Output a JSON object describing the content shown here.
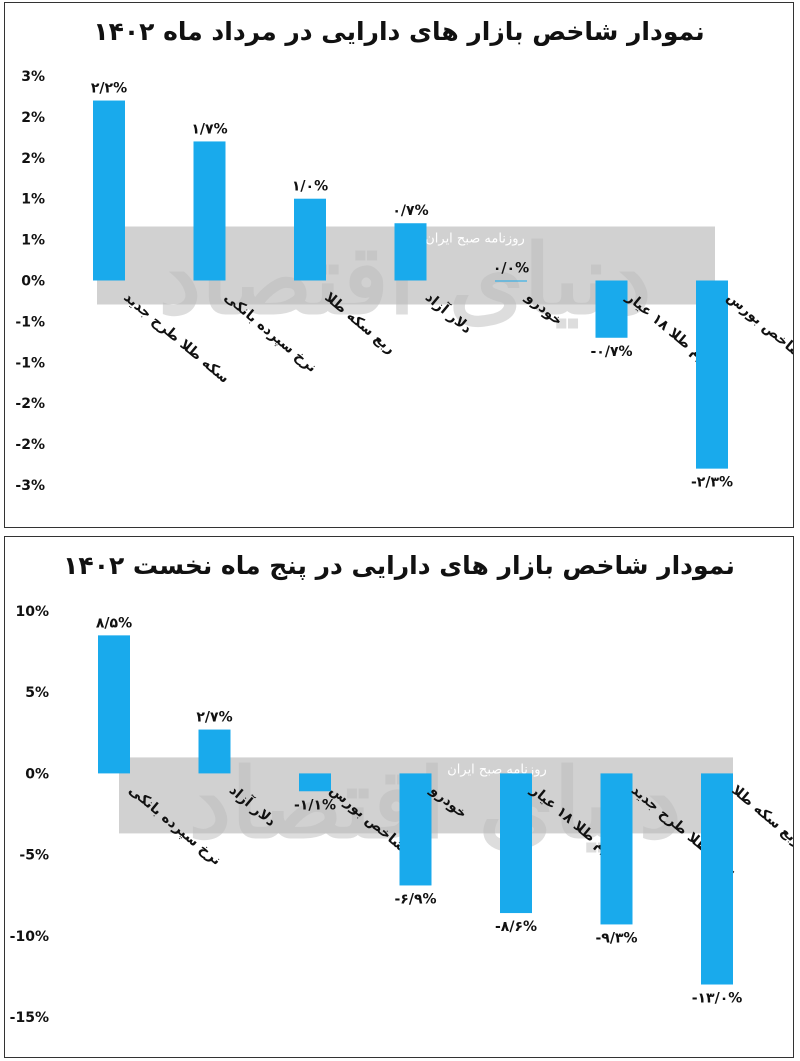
{
  "watermark": {
    "logo_text": "دنیای اقتصاد",
    "tagline": "روزنامه صبح ایران"
  },
  "colors": {
    "bar": "#19aaec",
    "band": "#9a9a9a"
  },
  "chart_data": [
    {
      "type": "bar",
      "title": "نمودار شاخص بازار های دارایی در مرداد ماه ۱۴۰۲",
      "categories": [
        "سکه طلا طرح جدید",
        "نرخ سپرده بانکی",
        "ربع سکه طلا",
        "دلار آزاد",
        "خودرو",
        "گرم طلا ۱۸ عیار",
        "شاخص بورس"
      ],
      "values": [
        2.2,
        1.7,
        1.0,
        0.7,
        0.0,
        -0.7,
        -2.3
      ],
      "data_labels": [
        "۲/۲%",
        "۱/۷%",
        "۱/۰%",
        "۰/۷%",
        "۰/۰%",
        "-۰/۷%",
        "-۲/۳%"
      ],
      "ylim": [
        -2.5,
        2.5
      ],
      "yticks": [
        2.5,
        2.0,
        1.5,
        1.0,
        0.5,
        0.0,
        -0.5,
        -1.0,
        -1.5,
        -2.0,
        -2.5
      ],
      "ytick_labels": [
        "3%",
        "2%",
        "2%",
        "1%",
        "1%",
        "0%",
        "-1%",
        "-1%",
        "-2%",
        "-2%",
        "-3%"
      ],
      "grid": false
    },
    {
      "type": "bar",
      "title": "نمودار شاخص بازار های دارایی در پنج ماه نخست ۱۴۰۲",
      "categories": [
        "نرخ سپرده بانکی",
        "دلار آزاد",
        "شاخص بورس",
        "خودرو",
        "گرم طلا ۱۸ عیار",
        "سکه طلا طرح جدید",
        "ربع سکه طلا"
      ],
      "values": [
        8.5,
        2.7,
        -1.1,
        -6.9,
        -8.6,
        -9.3,
        -13.0
      ],
      "data_labels": [
        "۸/۵%",
        "۲/۷%",
        "-۱/۱%",
        "-۶/۹%",
        "-۸/۶%",
        "-۹/۳%",
        "-۱۳/۰%"
      ],
      "ylim": [
        -15,
        10
      ],
      "yticks": [
        10,
        5,
        0,
        -5,
        -10,
        -15
      ],
      "ytick_labels": [
        "10%",
        "5%",
        "0%",
        "-5%",
        "-10%",
        "-15%"
      ],
      "grid": false
    }
  ]
}
